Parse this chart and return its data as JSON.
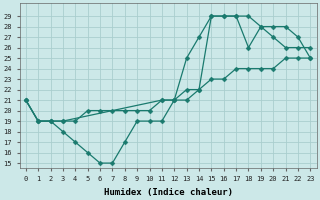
{
  "line_zigzag": {
    "x": [
      0,
      1,
      2,
      3,
      4,
      5,
      6,
      7,
      8,
      9,
      10,
      11,
      12,
      13,
      14,
      15,
      16,
      17,
      18,
      19,
      20,
      21,
      22,
      23
    ],
    "y": [
      21,
      19,
      19,
      18,
      17,
      16,
      15,
      15,
      17,
      19,
      19,
      19,
      21,
      25,
      27,
      29,
      29,
      29,
      26,
      28,
      27,
      26,
      26,
      26
    ]
  },
  "line_upper": {
    "x": [
      0,
      1,
      2,
      3,
      11,
      12,
      13,
      14,
      15,
      16,
      17,
      18,
      19,
      20,
      21,
      22,
      23
    ],
    "y": [
      21,
      19,
      19,
      19,
      21,
      21,
      21,
      22,
      29,
      29,
      29,
      29,
      28,
      28,
      28,
      27,
      25
    ]
  },
  "line_lower": {
    "x": [
      0,
      1,
      2,
      3,
      4,
      5,
      6,
      7,
      8,
      9,
      10,
      11,
      12,
      13,
      14,
      15,
      16,
      17,
      18,
      19,
      20,
      21,
      22,
      23
    ],
    "y": [
      21,
      19,
      19,
      19,
      19,
      20,
      20,
      20,
      20,
      20,
      20,
      21,
      21,
      22,
      22,
      23,
      23,
      24,
      24,
      24,
      24,
      25,
      25,
      25
    ]
  },
  "line_color": "#1a7a6e",
  "bg_color": "#cce8e8",
  "grid_color": "#aacece",
  "xlabel": "Humidex (Indice chaleur)",
  "xlabel_fontsize": 6.5,
  "yticks": [
    15,
    16,
    17,
    18,
    19,
    20,
    21,
    22,
    23,
    24,
    25,
    26,
    27,
    28,
    29
  ],
  "xlim": [
    -0.5,
    23.5
  ],
  "ylim": [
    14.5,
    30.2
  ],
  "figsize": [
    3.2,
    2.0
  ],
  "dpi": 100,
  "tick_fontsize": 5.0,
  "marker": "D",
  "markersize": 2.5,
  "linewidth": 0.9
}
